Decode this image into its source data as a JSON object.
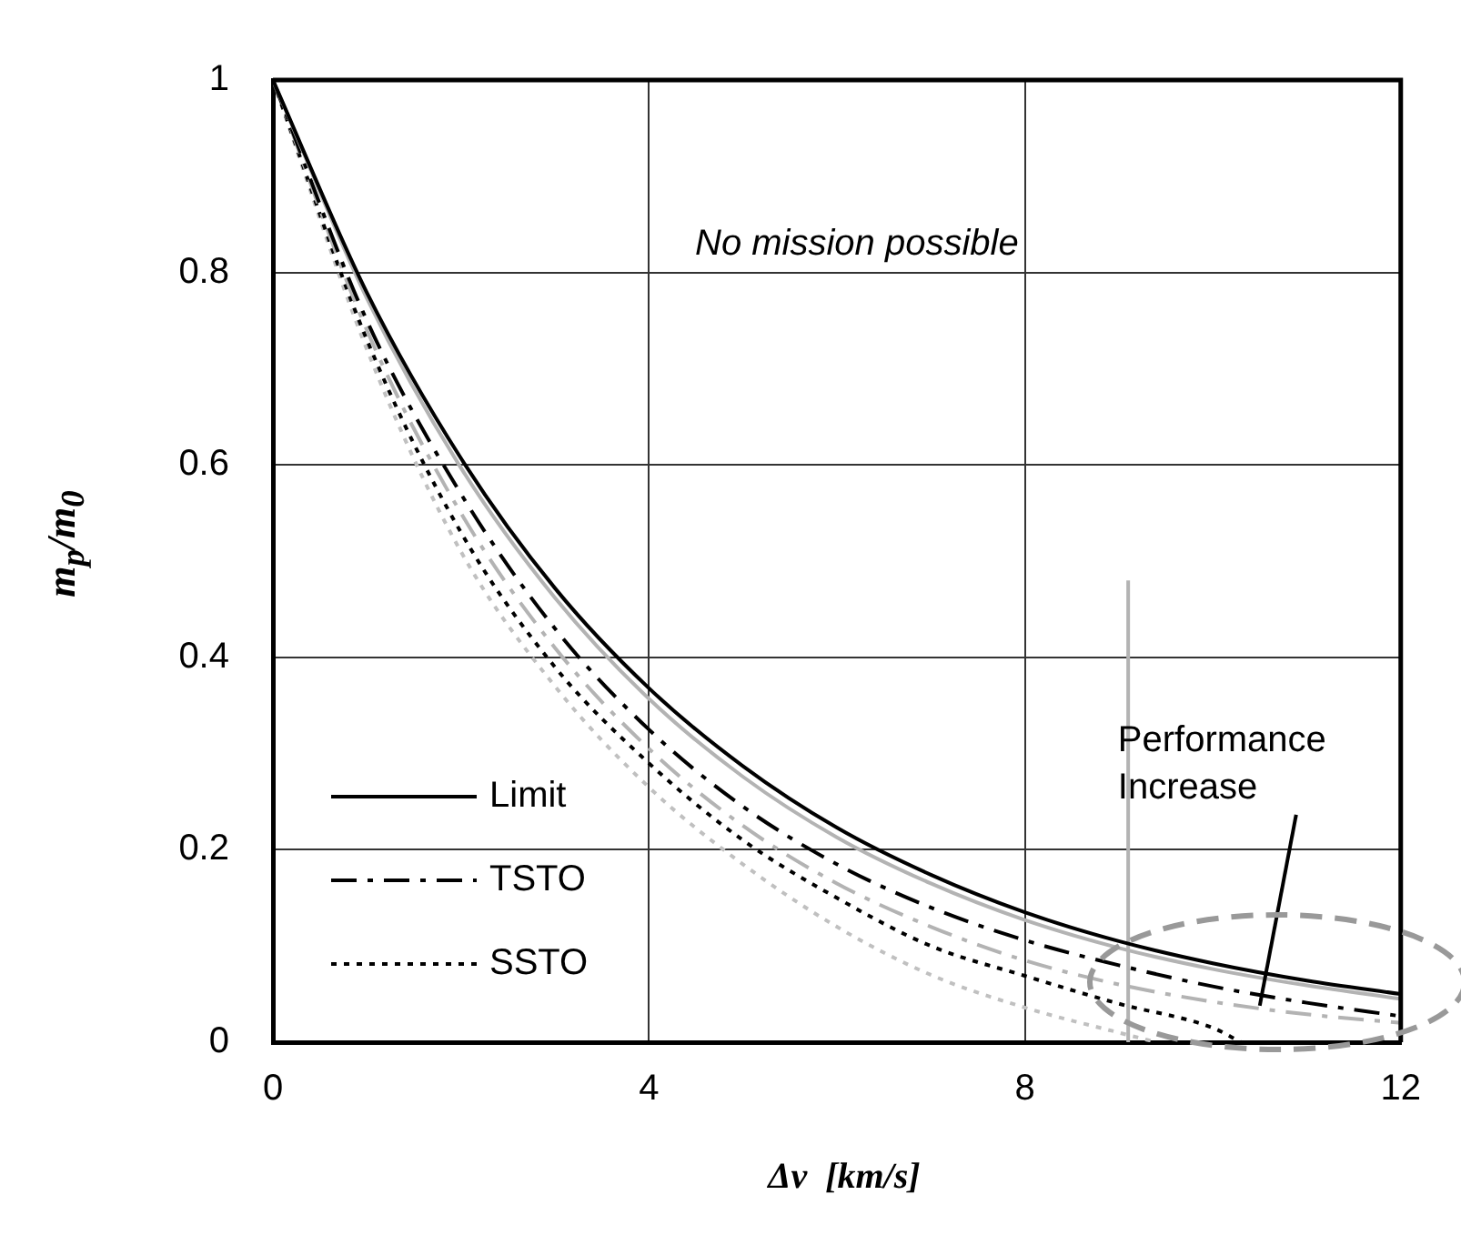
{
  "chart_data": {
    "type": "line",
    "xlabel": "Δv  [km/s]",
    "ylabel": "m$_{p}$/m$_{0}$",
    "x": [
      0,
      1,
      2,
      3,
      4,
      5,
      6,
      7,
      8,
      9,
      10,
      11,
      12
    ],
    "xlim": [
      0,
      12
    ],
    "xticks": [
      0,
      4,
      8,
      12
    ],
    "ylim": [
      0,
      1
    ],
    "yticks": [
      0,
      0.2,
      0.4,
      0.6,
      0.8,
      1
    ],
    "grid": true,
    "legend": "bottom left",
    "marker": "none",
    "series": [
      {
        "name": "Limit",
        "color": "#000000",
        "line_style": "solid",
        "values": [
          1,
          0.779,
          0.607,
          0.472,
          0.368,
          0.287,
          0.223,
          0.174,
          0.135,
          0.105,
          0.082,
          0.064,
          0.05
        ]
      },
      {
        "color": "#b3b3b3",
        "line_style": "solid",
        "values": [
          1,
          0.773,
          0.597,
          0.462,
          0.357,
          0.276,
          0.213,
          0.165,
          0.127,
          0.098,
          0.076,
          0.059,
          0.045
        ]
      },
      {
        "name": "TSTO",
        "color": "#000000",
        "line_style": "dashed",
        "values": [
          1,
          0.75,
          0.57,
          0.43,
          0.325,
          0.245,
          0.185,
          0.14,
          0.106,
          0.08,
          0.058,
          0.041,
          0.027
        ]
      },
      {
        "color": "#b3b3b3",
        "line_style": "dashed",
        "values": [
          1,
          0.74,
          0.55,
          0.41,
          0.305,
          0.225,
          0.165,
          0.12,
          0.085,
          0.06,
          0.042,
          0.029,
          0.02
        ]
      },
      {
        "name": "SSTO",
        "color": "#000000",
        "line_style": "dotted",
        "x": [
          0,
          1,
          2,
          3,
          4,
          5,
          6,
          7,
          8,
          9,
          10,
          10.3
        ],
        "values": [
          1,
          0.73,
          0.53,
          0.39,
          0.29,
          0.21,
          0.15,
          0.1,
          0.069,
          0.04,
          0.015,
          0
        ]
      },
      {
        "color": "#c0c0c0",
        "line_style": "dotted",
        "x": [
          0,
          1,
          2,
          3,
          4,
          5,
          6,
          7,
          8,
          9,
          9.4
        ],
        "values": [
          1,
          0.72,
          0.51,
          0.37,
          0.265,
          0.185,
          0.12,
          0.07,
          0.036,
          0.01,
          0
        ]
      },
      {
        "color": "#b3b3b3",
        "line_style": "solid",
        "x": [
          9.1,
          9.1
        ],
        "values": [
          0,
          0.48
        ]
      }
    ],
    "annotations": [
      "No mission possible",
      {
        "text": "Performance Increase",
        "x": 10.5,
        "y": 0.038
      }
    ]
  }
}
